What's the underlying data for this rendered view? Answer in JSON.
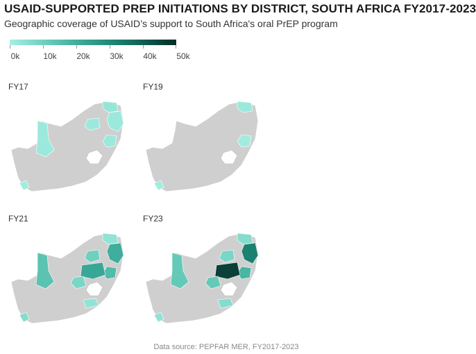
{
  "title": "USAID-SUPPORTED PREP INITIATIONS BY DISTRICT, SOUTH AFRICA FY2017-2023",
  "subtitle": "Geographic coverage of USAID’s support to South Africa's oral PrEP program",
  "legend": {
    "ticks": [
      "0k",
      "10k",
      "20k",
      "30k",
      "40k",
      "50k"
    ],
    "colors": [
      "#a6efe3",
      "#6fd0bf",
      "#3fae9c",
      "#1f8a78",
      "#0f5f52",
      "#062b25"
    ]
  },
  "colors": {
    "no_data": "#cfcfcf",
    "border": "#ffffff"
  },
  "panels": [
    {
      "label": "FY17",
      "districts": [
        {
          "id": "d1",
          "value": 3
        },
        {
          "id": "d2",
          "value": 2
        },
        {
          "id": "d3",
          "value": 2
        },
        {
          "id": "d4",
          "value": 2
        },
        {
          "id": "d5",
          "value": 2
        },
        {
          "id": "d6",
          "value": 1
        }
      ]
    },
    {
      "label": "FY19",
      "districts": [
        {
          "id": "d1",
          "value": 2
        },
        {
          "id": "d5",
          "value": 1
        },
        {
          "id": "d6",
          "value": 1
        }
      ]
    },
    {
      "label": "FY21",
      "districts": [
        {
          "id": "d1",
          "value": 4
        },
        {
          "id": "d2",
          "value": 20
        },
        {
          "id": "d3",
          "value": 14
        },
        {
          "id": "d4",
          "value": 10
        },
        {
          "id": "d5",
          "value": 16
        },
        {
          "id": "d6",
          "value": 6
        },
        {
          "id": "d7",
          "value": 22
        },
        {
          "id": "d8",
          "value": 8
        },
        {
          "id": "d9",
          "value": 4
        }
      ]
    },
    {
      "label": "FY23",
      "districts": [
        {
          "id": "d1",
          "value": 6
        },
        {
          "id": "d2",
          "value": 32
        },
        {
          "id": "d3",
          "value": 12
        },
        {
          "id": "d4",
          "value": 8
        },
        {
          "id": "d5",
          "value": 18
        },
        {
          "id": "d6",
          "value": 4
        },
        {
          "id": "d7",
          "value": 46
        },
        {
          "id": "d8",
          "value": 12
        },
        {
          "id": "d9",
          "value": 6
        }
      ]
    }
  ],
  "source": "Data source: PEPFAR MER, FY2017-2023"
}
